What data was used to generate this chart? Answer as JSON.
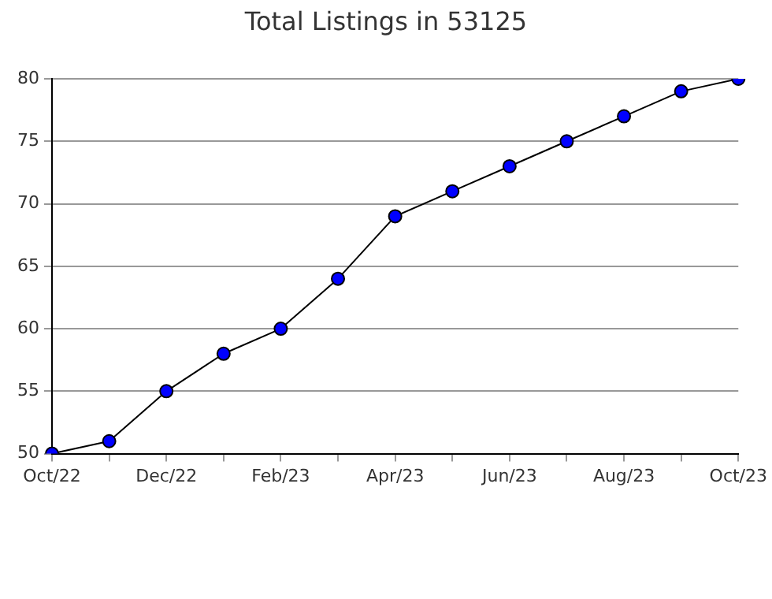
{
  "chart_data": {
    "type": "line",
    "title": "Total Listings in 53125",
    "categories": [
      "Oct/22",
      null,
      "Dec/22",
      null,
      "Feb/23",
      null,
      "Apr/23",
      null,
      "Jun/23",
      null,
      "Aug/23",
      null,
      "Oct/23"
    ],
    "series": [
      {
        "color": "#0000ff",
        "values": [
          50,
          51,
          55,
          58,
          60,
          64,
          69,
          71,
          73,
          75,
          77,
          79,
          80
        ]
      }
    ],
    "ylim": [
      50,
      80
    ],
    "yticks": [
      50,
      55,
      60,
      65,
      70,
      75,
      80
    ],
    "grid": "y",
    "legend": false,
    "marker": "circle",
    "line_style": "solid"
  }
}
